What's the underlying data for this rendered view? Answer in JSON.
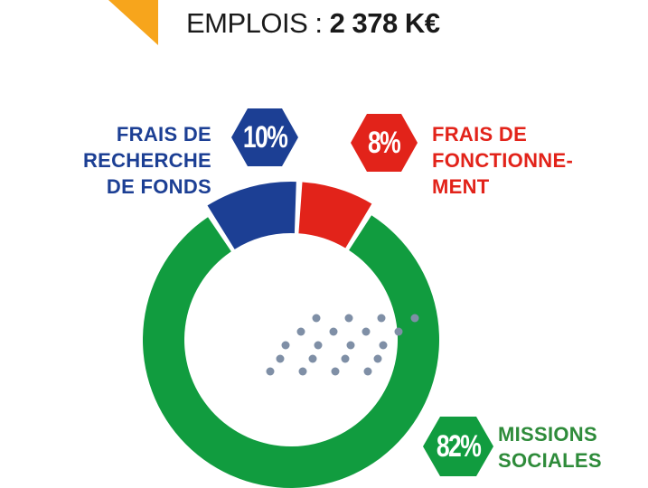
{
  "header": {
    "title_prefix": "EMPLOIS : ",
    "title_amount": "2 378 K€"
  },
  "colors": {
    "accent_orange": "#f7a51c",
    "blue": "#1c3f94",
    "red": "#e2231a",
    "green": "#119c3f",
    "dots": "#7f8fa6"
  },
  "chart_data": {
    "type": "pie",
    "title": "EMPLOIS : 2 378 K€",
    "slices": [
      {
        "label": "FRAIS DE RECHERCHE DE FONDS",
        "value": 10,
        "display": "10%",
        "color": "#1c3f94"
      },
      {
        "label": "FRAIS DE FONCTIONNEMENT",
        "value": 8,
        "display": "8%",
        "color": "#e2231a"
      },
      {
        "label": "MISSIONS SOCIALES",
        "value": 82,
        "display": "82%",
        "color": "#119c3f"
      }
    ]
  },
  "labels": {
    "blue_lines": [
      "FRAIS DE",
      "RECHERCHE",
      "DE FONDS"
    ],
    "red_lines": [
      "FRAIS DE",
      "FONCTIONNE-",
      "MENT"
    ],
    "green_lines": [
      "MISSIONS",
      "SOCIALES"
    ]
  }
}
